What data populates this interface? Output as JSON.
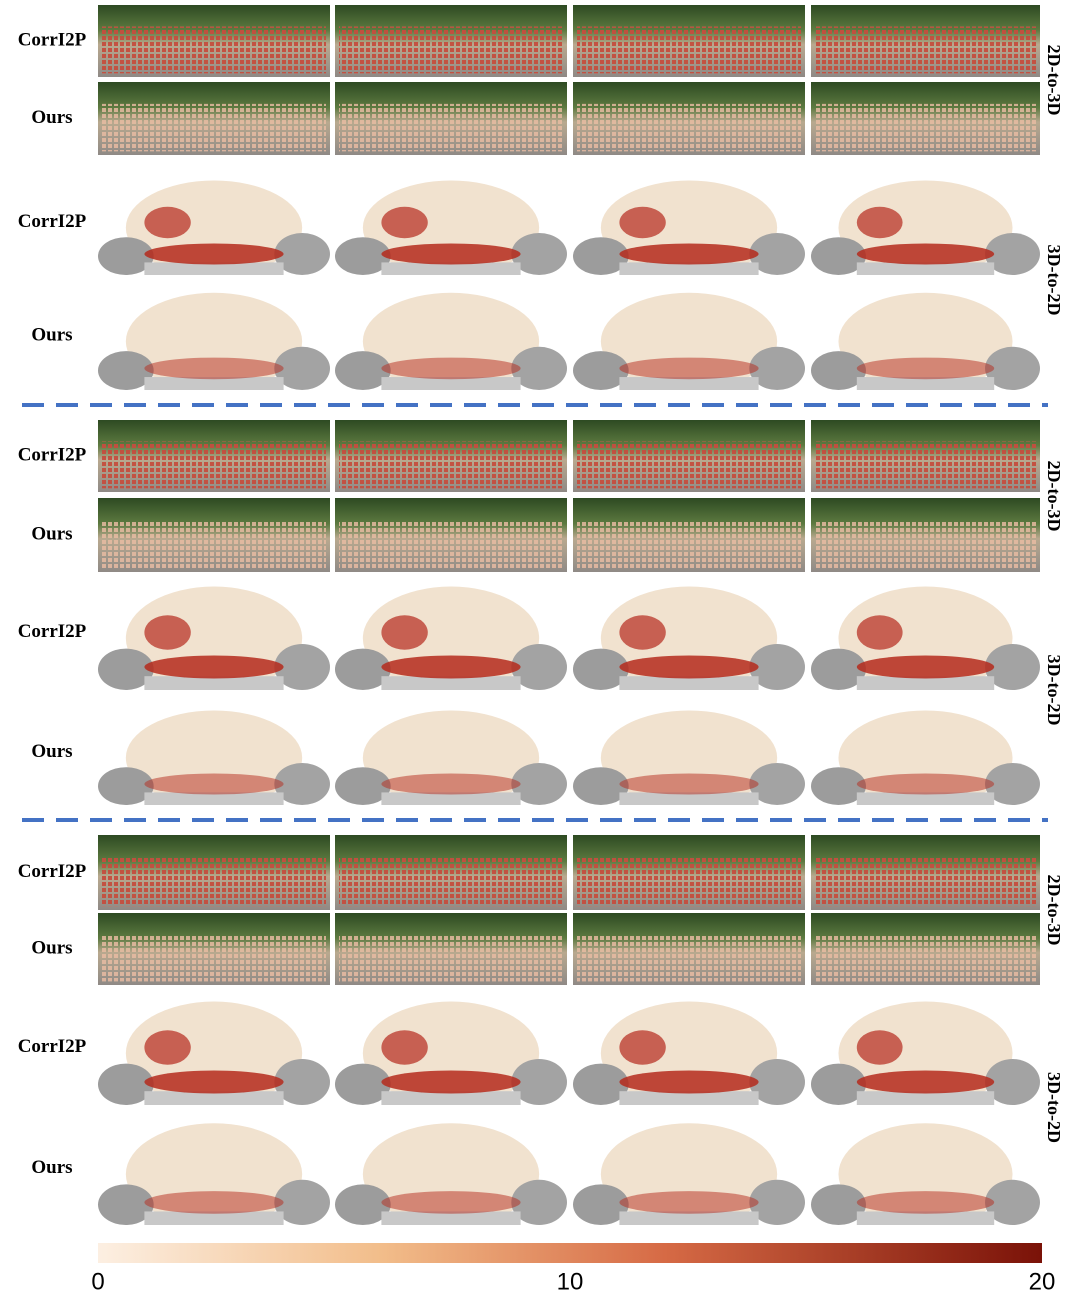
{
  "groups": [
    {
      "rows": [
        "CorrI2P",
        "Ours",
        "CorrI2P",
        "Ours"
      ],
      "side_labels": [
        "2D-to-3D",
        "3D-to-2D"
      ]
    },
    {
      "rows": [
        "CorrI2P",
        "Ours",
        "CorrI2P",
        "Ours"
      ],
      "side_labels": [
        "2D-to-3D",
        "3D-to-2D"
      ]
    },
    {
      "rows": [
        "CorrI2P",
        "Ours",
        "CorrI2P",
        "Ours"
      ],
      "side_labels": [
        "2D-to-3D",
        "3D-to-2D"
      ]
    }
  ],
  "colorbar": {
    "lim": [
      0,
      20
    ],
    "ticks": [
      0,
      10,
      20
    ]
  }
}
